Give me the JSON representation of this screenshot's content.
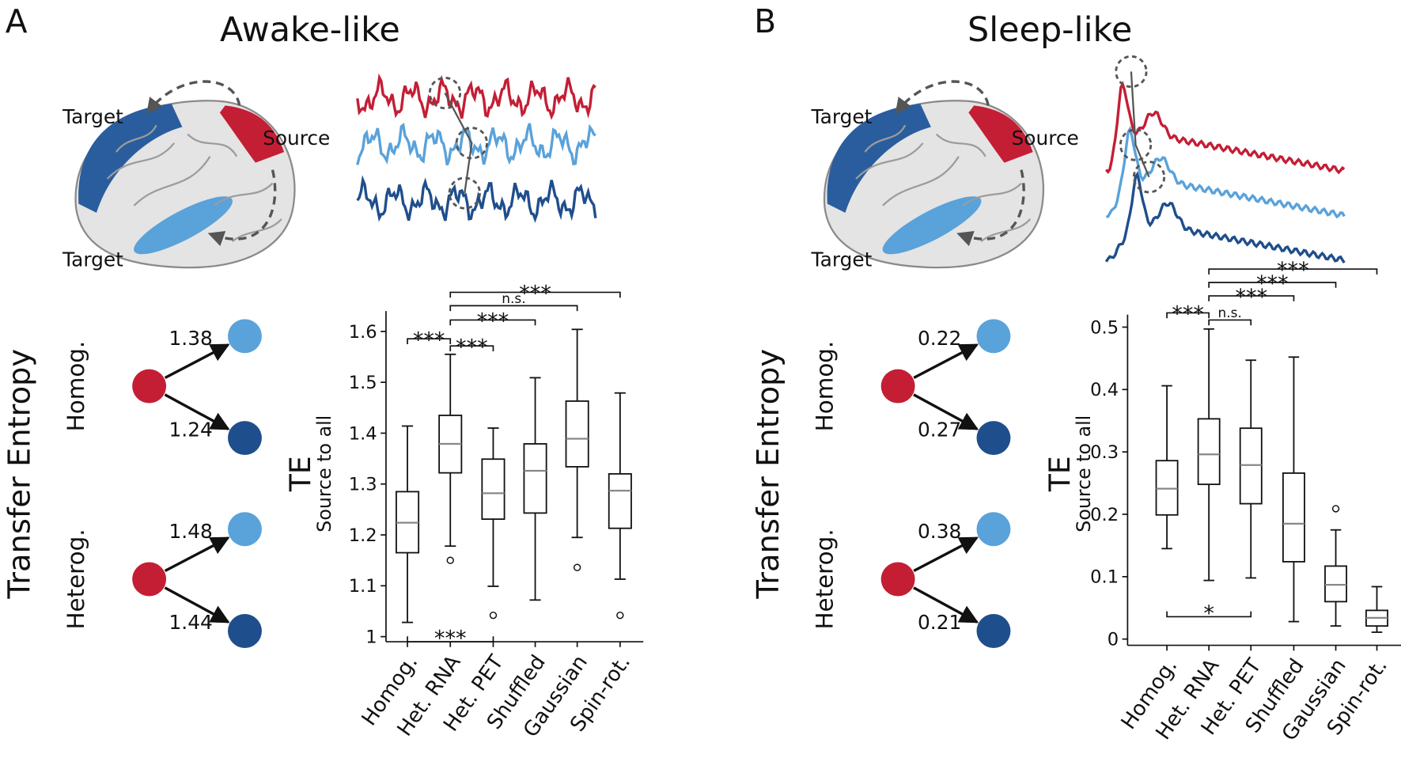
{
  "panels": [
    {
      "letter": "A",
      "title": "Awake-like",
      "brain_labels": [
        "Target",
        "Source",
        "Target"
      ],
      "network": {
        "axis_label": "Transfer Entropy",
        "groups": [
          {
            "name": "Homog.",
            "values": [
              1.38,
              1.24
            ]
          },
          {
            "name": "Heterog.",
            "values": [
              1.48,
              1.44
            ]
          }
        ]
      }
    },
    {
      "letter": "B",
      "title": "Sleep-like",
      "brain_labels": [
        "Target",
        "Source",
        "Target"
      ],
      "network": {
        "axis_label": "Transfer Entropy",
        "groups": [
          {
            "name": "Homog.",
            "values": [
              0.22,
              0.27
            ]
          },
          {
            "name": "Heterog.",
            "values": [
              0.38,
              0.21
            ]
          }
        ]
      }
    }
  ],
  "chart_data": [
    {
      "type": "box",
      "ylabel": "TE",
      "ylabel_sub": "Source to all",
      "categories": [
        "Homog.",
        "Het. RNA",
        "Het. PET",
        "Shuffled",
        "Gaussian",
        "Spin-rot."
      ],
      "boxes": [
        {
          "low": 1.028,
          "q1": 1.165,
          "median": 1.224,
          "q3": 1.285,
          "high": 1.414,
          "outliers": []
        },
        {
          "low": 1.178,
          "q1": 1.322,
          "median": 1.379,
          "q3": 1.435,
          "high": 1.555,
          "outliers": [
            1.15
          ]
        },
        {
          "low": 1.099,
          "q1": 1.231,
          "median": 1.282,
          "q3": 1.349,
          "high": 1.41,
          "outliers": [
            1.042
          ]
        },
        {
          "low": 1.072,
          "q1": 1.243,
          "median": 1.326,
          "q3": 1.379,
          "high": 1.509,
          "outliers": []
        },
        {
          "low": 1.195,
          "q1": 1.334,
          "median": 1.389,
          "q3": 1.463,
          "high": 1.604,
          "outliers": [
            1.136
          ]
        },
        {
          "low": 1.113,
          "q1": 1.213,
          "median": 1.287,
          "q3": 1.32,
          "high": 1.479,
          "outliers": [
            1.042
          ]
        }
      ],
      "ylim": [
        0.99,
        1.64
      ],
      "yticks": [
        1,
        1.1,
        1.2,
        1.3,
        1.4,
        1.5,
        1.6
      ],
      "color": "#111111",
      "median_color": "#888888",
      "annotations": [
        "***",
        "n.s.",
        "***",
        "***",
        "***",
        "***"
      ]
    },
    {
      "type": "box",
      "ylabel": "TE",
      "ylabel_sub": "Source to all",
      "categories": [
        "Homog.",
        "Het. RNA",
        "Het. PET",
        "Shuffled",
        "Gaussian",
        "Spin-rot."
      ],
      "boxes": [
        {
          "low": 0.145,
          "q1": 0.199,
          "median": 0.241,
          "q3": 0.286,
          "high": 0.406,
          "outliers": []
        },
        {
          "low": 0.094,
          "q1": 0.248,
          "median": 0.296,
          "q3": 0.353,
          "high": 0.497,
          "outliers": []
        },
        {
          "low": 0.098,
          "q1": 0.217,
          "median": 0.279,
          "q3": 0.338,
          "high": 0.447,
          "outliers": []
        },
        {
          "low": 0.028,
          "q1": 0.124,
          "median": 0.185,
          "q3": 0.266,
          "high": 0.452,
          "outliers": []
        },
        {
          "low": 0.021,
          "q1": 0.06,
          "median": 0.087,
          "q3": 0.117,
          "high": 0.175,
          "outliers": [
            0.209
          ]
        },
        {
          "low": 0.011,
          "q1": 0.021,
          "median": 0.034,
          "q3": 0.046,
          "high": 0.084,
          "outliers": []
        }
      ],
      "ylim": [
        -0.01,
        0.52
      ],
      "yticks": [
        0,
        0.1,
        0.2,
        0.3,
        0.4,
        0.5
      ],
      "color": "#111111",
      "median_color": "#888888",
      "annotations": [
        "***",
        "***",
        "***",
        "***",
        "n.s.",
        "*"
      ]
    }
  ]
}
